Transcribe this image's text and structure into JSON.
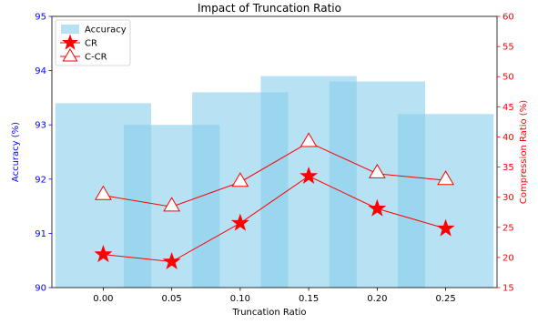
{
  "chart_data": {
    "type": "bar",
    "title": "Impact of Truncation Ratio",
    "xlabel": "Truncation Ratio",
    "categories": [
      "0.00",
      "0.05",
      "0.10",
      "0.15",
      "0.20",
      "0.25"
    ],
    "x": [
      0.0,
      0.05,
      0.1,
      0.15,
      0.2,
      0.25
    ],
    "y_left": {
      "label": "Accuracy (%)",
      "range": [
        90,
        95
      ],
      "ticks": [
        "90",
        "91",
        "92",
        "93",
        "94",
        "95"
      ],
      "color": "#0000ff"
    },
    "y_right": {
      "label": "Compression Ratio (%)",
      "range": [
        15,
        60
      ],
      "ticks": [
        "15",
        "20",
        "25",
        "30",
        "35",
        "40",
        "45",
        "50",
        "55",
        "60"
      ],
      "color": "#ff0000"
    },
    "series": [
      {
        "name": "Accuracy",
        "kind": "bar",
        "axis": "left",
        "color": "#87ceeb",
        "values": [
          93.4,
          93.0,
          93.6,
          93.9,
          93.8,
          93.2
        ]
      },
      {
        "name": "CR",
        "kind": "line",
        "marker": "star",
        "axis": "right",
        "color": "#ff0000",
        "values": [
          20.5,
          19.3,
          25.7,
          33.5,
          28.1,
          24.8
        ]
      },
      {
        "name": "C-CR",
        "kind": "line",
        "marker": "triangle-open",
        "axis": "right",
        "color": "#ff0000",
        "values": [
          30.3,
          28.4,
          32.5,
          39.1,
          33.9,
          32.8
        ]
      }
    ],
    "legend": {
      "position": "top-left",
      "entries": [
        "Accuracy",
        "CR",
        "C-CR"
      ]
    },
    "grid": false
  }
}
